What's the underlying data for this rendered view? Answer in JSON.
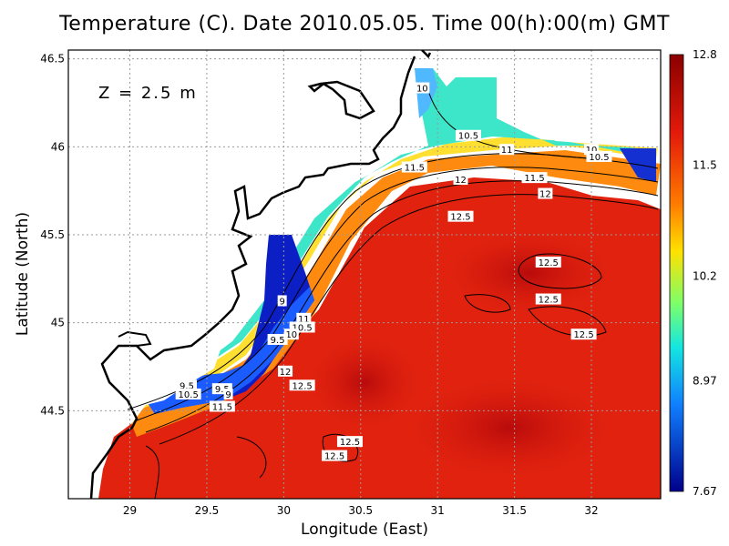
{
  "chart_data": {
    "type": "heatmap",
    "title": "Temperature (C). Date 2010.05.05. Time 00(h):00(m) GMT",
    "xlabel": "Longitude (East)",
    "ylabel": "Latitude (North)",
    "annotation": "Z = 2.5 m",
    "xlim": [
      28.6,
      32.45
    ],
    "ylim": [
      44.0,
      46.55
    ],
    "x_ticks": [
      "29",
      "29.5",
      "30",
      "30.5",
      "31",
      "31.5",
      "32"
    ],
    "x_tick_values": [
      29,
      29.5,
      30,
      30.5,
      31,
      31.5,
      32
    ],
    "y_ticks": [
      "44.5",
      "45",
      "45.5",
      "46",
      "46.5"
    ],
    "y_tick_values": [
      44.5,
      45.0,
      45.5,
      46.0,
      46.5
    ],
    "grid": true,
    "colorbar": {
      "min": 7.67,
      "max": 12.8,
      "tick_labels": [
        "12.8",
        "11.5",
        "10.2",
        "8.97",
        "7.67"
      ],
      "tick_values": [
        12.8,
        11.5,
        10.2,
        8.97,
        7.67
      ]
    },
    "contour_labels": [
      {
        "text": "10",
        "lon": 30.9,
        "lat": 46.33
      },
      {
        "text": "10.5",
        "lon": 31.2,
        "lat": 46.06
      },
      {
        "text": "11",
        "lon": 31.45,
        "lat": 45.98
      },
      {
        "text": "10",
        "lon": 32.0,
        "lat": 45.98
      },
      {
        "text": "10.5",
        "lon": 32.05,
        "lat": 45.94
      },
      {
        "text": "11.5",
        "lon": 30.85,
        "lat": 45.88
      },
      {
        "text": "11.5",
        "lon": 31.63,
        "lat": 45.82
      },
      {
        "text": "12",
        "lon": 31.15,
        "lat": 45.81
      },
      {
        "text": "12",
        "lon": 31.7,
        "lat": 45.73
      },
      {
        "text": "12.5",
        "lon": 31.15,
        "lat": 45.6
      },
      {
        "text": "12.5",
        "lon": 31.72,
        "lat": 45.34
      },
      {
        "text": "12.5",
        "lon": 31.72,
        "lat": 45.13
      },
      {
        "text": "12.5",
        "lon": 31.95,
        "lat": 44.93
      },
      {
        "text": "9",
        "lon": 29.99,
        "lat": 45.12
      },
      {
        "text": "11",
        "lon": 30.13,
        "lat": 45.02
      },
      {
        "text": "10.5",
        "lon": 30.12,
        "lat": 44.97
      },
      {
        "text": "10",
        "lon": 30.05,
        "lat": 44.93
      },
      {
        "text": "9.5",
        "lon": 29.96,
        "lat": 44.9
      },
      {
        "text": "12",
        "lon": 30.01,
        "lat": 44.72
      },
      {
        "text": "12.5",
        "lon": 30.12,
        "lat": 44.64
      },
      {
        "text": "9.5",
        "lon": 29.37,
        "lat": 44.64
      },
      {
        "text": "10.5",
        "lon": 29.38,
        "lat": 44.59
      },
      {
        "text": "9.5",
        "lon": 29.6,
        "lat": 44.62
      },
      {
        "text": "9",
        "lon": 29.64,
        "lat": 44.59
      },
      {
        "text": "11.5",
        "lon": 29.6,
        "lat": 44.52
      },
      {
        "text": "12.5",
        "lon": 30.43,
        "lat": 44.32
      },
      {
        "text": "12.5",
        "lon": 30.33,
        "lat": 44.24
      }
    ]
  },
  "colors": {
    "warm": "#e2210e",
    "cold": "#0a18b8",
    "land": "#ffffff"
  }
}
